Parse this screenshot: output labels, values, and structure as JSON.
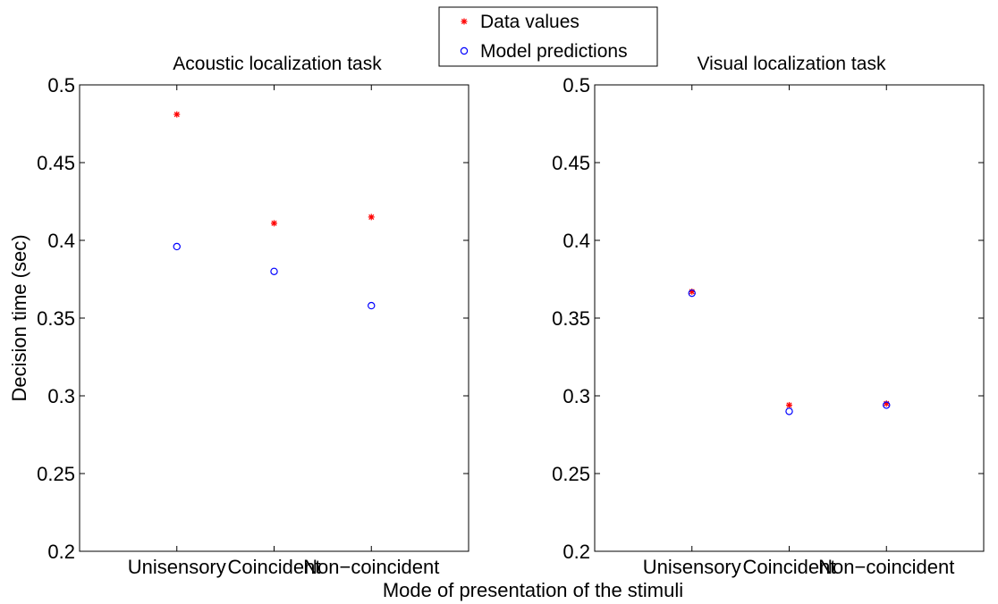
{
  "figure": {
    "xlabel": "Mode of presentation of the stimuli",
    "ylabel": "Decision time (sec)"
  },
  "legend": {
    "placement": "top-center",
    "entries": [
      {
        "label": "Data values",
        "marker": "asterisk",
        "color": "#ff0000"
      },
      {
        "label": "Model predictions",
        "marker": "circle",
        "color": "#0000ff"
      }
    ]
  },
  "chart_data": [
    {
      "type": "scatter",
      "title": "Acoustic localization task",
      "categories": [
        "Unisensory",
        "Coincident",
        "Non−coincident"
      ],
      "yticks": [
        "0.2",
        "0.25",
        "0.3",
        "0.35",
        "0.4",
        "0.45",
        "0.5"
      ],
      "ylim": [
        0.2,
        0.5
      ],
      "grid": false,
      "series": [
        {
          "name": "Data values",
          "marker": "asterisk",
          "color": "#ff0000",
          "values": [
            0.481,
            0.411,
            0.415
          ]
        },
        {
          "name": "Model predictions",
          "marker": "circle",
          "color": "#0000ff",
          "values": [
            0.396,
            0.38,
            0.358
          ]
        }
      ]
    },
    {
      "type": "scatter",
      "title": "Visual localization task",
      "categories": [
        "Unisensory",
        "Coincident",
        "Non−coincident"
      ],
      "yticks": [
        "0.2",
        "0.25",
        "0.3",
        "0.35",
        "0.4",
        "0.45",
        "0.5"
      ],
      "ylim": [
        0.2,
        0.5
      ],
      "grid": false,
      "series": [
        {
          "name": "Data values",
          "marker": "asterisk",
          "color": "#ff0000",
          "values": [
            0.367,
            0.294,
            0.295
          ]
        },
        {
          "name": "Model predictions",
          "marker": "circle",
          "color": "#0000ff",
          "values": [
            0.366,
            0.29,
            0.294
          ]
        }
      ]
    }
  ]
}
